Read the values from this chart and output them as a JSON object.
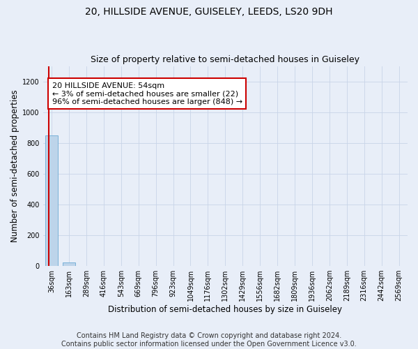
{
  "title": "20, HILLSIDE AVENUE, GUISELEY, LEEDS, LS20 9DH",
  "subtitle": "Size of property relative to semi-detached houses in Guiseley",
  "xlabel": "Distribution of semi-detached houses by size in Guiseley",
  "ylabel": "Number of semi-detached properties",
  "bar_labels": [
    "36sqm",
    "163sqm",
    "289sqm",
    "416sqm",
    "543sqm",
    "669sqm",
    "796sqm",
    "923sqm",
    "1049sqm",
    "1176sqm",
    "1302sqm",
    "1429sqm",
    "1556sqm",
    "1682sqm",
    "1809sqm",
    "1936sqm",
    "2062sqm",
    "2189sqm",
    "2316sqm",
    "2442sqm",
    "2569sqm"
  ],
  "bar_values": [
    848,
    22,
    0,
    0,
    0,
    0,
    0,
    0,
    0,
    0,
    0,
    0,
    0,
    0,
    0,
    0,
    0,
    0,
    0,
    0,
    0
  ],
  "bar_color": "#bdd4ea",
  "bar_edge_color": "#6aaad4",
  "ylim": [
    0,
    1300
  ],
  "yticks": [
    0,
    200,
    400,
    600,
    800,
    1000,
    1200
  ],
  "property_line_color": "#cc0000",
  "annotation_text": "20 HILLSIDE AVENUE: 54sqm\n← 3% of semi-detached houses are smaller (22)\n96% of semi-detached houses are larger (848) →",
  "annotation_box_color": "#ffffff",
  "annotation_border_color": "#cc0000",
  "footer_line1": "Contains HM Land Registry data © Crown copyright and database right 2024.",
  "footer_line2": "Contains public sector information licensed under the Open Government Licence v3.0.",
  "background_color": "#e8eef8",
  "plot_bg_color": "#e8eef8",
  "grid_color": "#c8d4e8",
  "title_fontsize": 10,
  "subtitle_fontsize": 9,
  "axis_label_fontsize": 8.5,
  "tick_fontsize": 7,
  "annotation_fontsize": 8,
  "footer_fontsize": 7
}
